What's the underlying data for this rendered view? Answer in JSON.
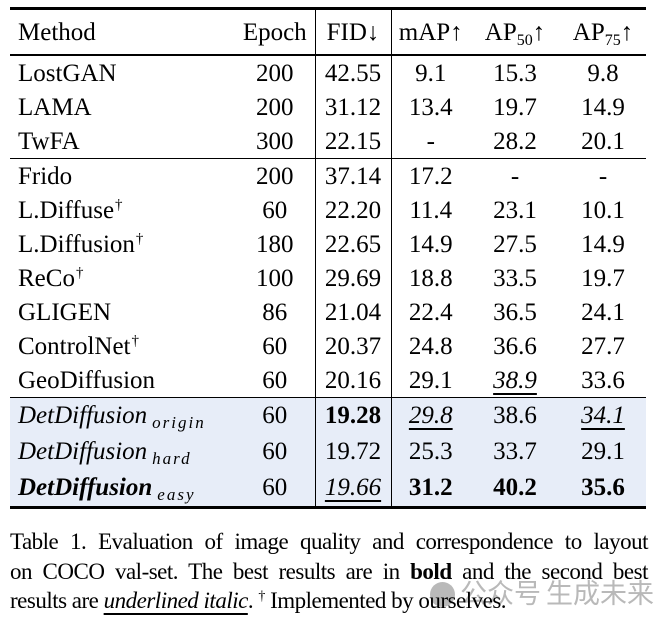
{
  "colors": {
    "highlight_row_bg": "#e7edf8",
    "rule": "#000000",
    "watermark_gray": "#b9b9b9"
  },
  "table": {
    "header": {
      "method": "Method",
      "epoch": "Epoch",
      "fid": "FID↓",
      "map": "mAP↑",
      "ap50": {
        "base": "AP",
        "sub": "50",
        "arrow": "↑"
      },
      "ap75": {
        "base": "AP",
        "sub": "75",
        "arrow": "↑"
      }
    },
    "columns": [
      "Method",
      "Epoch",
      "FID↓",
      "mAP↑",
      "AP50↑",
      "AP75↑"
    ],
    "groups": [
      {
        "highlight": false,
        "rows": [
          {
            "method": {
              "text": "LostGAN"
            },
            "epoch": "200",
            "values": [
              {
                "text": "42.55"
              },
              {
                "text": "9.1"
              },
              {
                "text": "15.3"
              },
              {
                "text": "9.8"
              }
            ]
          },
          {
            "method": {
              "text": "LAMA"
            },
            "epoch": "200",
            "values": [
              {
                "text": "31.12"
              },
              {
                "text": "13.4"
              },
              {
                "text": "19.7"
              },
              {
                "text": "14.9"
              }
            ]
          },
          {
            "method": {
              "text": "TwFA"
            },
            "epoch": "300",
            "values": [
              {
                "text": "22.15"
              },
              {
                "text": "-"
              },
              {
                "text": "28.2"
              },
              {
                "text": "20.1"
              }
            ]
          }
        ]
      },
      {
        "highlight": false,
        "rows": [
          {
            "method": {
              "text": "Frido"
            },
            "epoch": "200",
            "values": [
              {
                "text": "37.14"
              },
              {
                "text": "17.2"
              },
              {
                "text": "-"
              },
              {
                "text": "-"
              }
            ]
          },
          {
            "method": {
              "text": "L.Diffuse",
              "sup": "†"
            },
            "epoch": "60",
            "values": [
              {
                "text": "22.20"
              },
              {
                "text": "11.4"
              },
              {
                "text": "23.1"
              },
              {
                "text": "10.1"
              }
            ]
          },
          {
            "method": {
              "text": "L.Diffusion",
              "sup": "†"
            },
            "epoch": "180",
            "values": [
              {
                "text": "22.65"
              },
              {
                "text": "14.9"
              },
              {
                "text": "27.5"
              },
              {
                "text": "14.9"
              }
            ]
          },
          {
            "method": {
              "text": "ReCo",
              "sup": "†"
            },
            "epoch": "100",
            "values": [
              {
                "text": "29.69"
              },
              {
                "text": "18.8"
              },
              {
                "text": "33.5"
              },
              {
                "text": "19.7"
              }
            ]
          },
          {
            "method": {
              "text": "GLIGEN"
            },
            "epoch": "86",
            "values": [
              {
                "text": "21.04"
              },
              {
                "text": "22.4"
              },
              {
                "text": "36.5"
              },
              {
                "text": "24.1"
              }
            ]
          },
          {
            "method": {
              "text": "ControlNet",
              "sup": "†"
            },
            "epoch": "60",
            "values": [
              {
                "text": "20.37"
              },
              {
                "text": "24.8"
              },
              {
                "text": "36.6"
              },
              {
                "text": "27.7"
              }
            ]
          },
          {
            "method": {
              "text": "GeoDiffusion"
            },
            "epoch": "60",
            "values": [
              {
                "text": "20.16"
              },
              {
                "text": "29.1"
              },
              {
                "text": "38.9",
                "italic": true,
                "ul": true
              },
              {
                "text": "33.6"
              }
            ]
          }
        ]
      },
      {
        "highlight": true,
        "rows": [
          {
            "method": {
              "text": "DetDiffusion",
              "sub": "origin",
              "italic": true
            },
            "epoch": "60",
            "values": [
              {
                "text": "19.28",
                "bold": true
              },
              {
                "text": "29.8",
                "italic": true,
                "ul": true
              },
              {
                "text": "38.6"
              },
              {
                "text": "34.1",
                "italic": true,
                "ul": true
              }
            ]
          },
          {
            "method": {
              "text": "DetDiffusion",
              "sub": "hard",
              "italic": true
            },
            "epoch": "60",
            "values": [
              {
                "text": "19.72"
              },
              {
                "text": "25.3"
              },
              {
                "text": "33.7"
              },
              {
                "text": "29.1"
              }
            ]
          },
          {
            "method": {
              "text": "DetDiffusion",
              "sub": "easy",
              "italic": true,
              "bold": true
            },
            "epoch": "60",
            "values": [
              {
                "text": "19.66",
                "italic": true,
                "ul": true
              },
              {
                "text": "31.2",
                "bold": true
              },
              {
                "text": "40.2",
                "bold": true
              },
              {
                "text": "35.6",
                "bold": true
              }
            ]
          }
        ]
      }
    ]
  },
  "caption": {
    "lines": [
      {
        "justify": true,
        "parts": [
          {
            "text": "Table 1. Evaluation of image quality and correspondence to layout"
          }
        ]
      },
      {
        "justify": true,
        "parts": [
          {
            "text": "on COCO val-set. The best results are in "
          },
          {
            "text": "bold",
            "bold": true
          },
          {
            "text": " and the second best"
          }
        ]
      },
      {
        "justify": false,
        "parts": [
          {
            "text": "results are "
          },
          {
            "text": "underlined italic",
            "italic": true,
            "ul": true
          },
          {
            "text": ". "
          },
          {
            "text": "†",
            "sup": true
          },
          {
            "text": " Implemented by ourselves."
          }
        ]
      }
    ]
  },
  "watermark": {
    "account": "公众号",
    "brand": "生成未来"
  }
}
